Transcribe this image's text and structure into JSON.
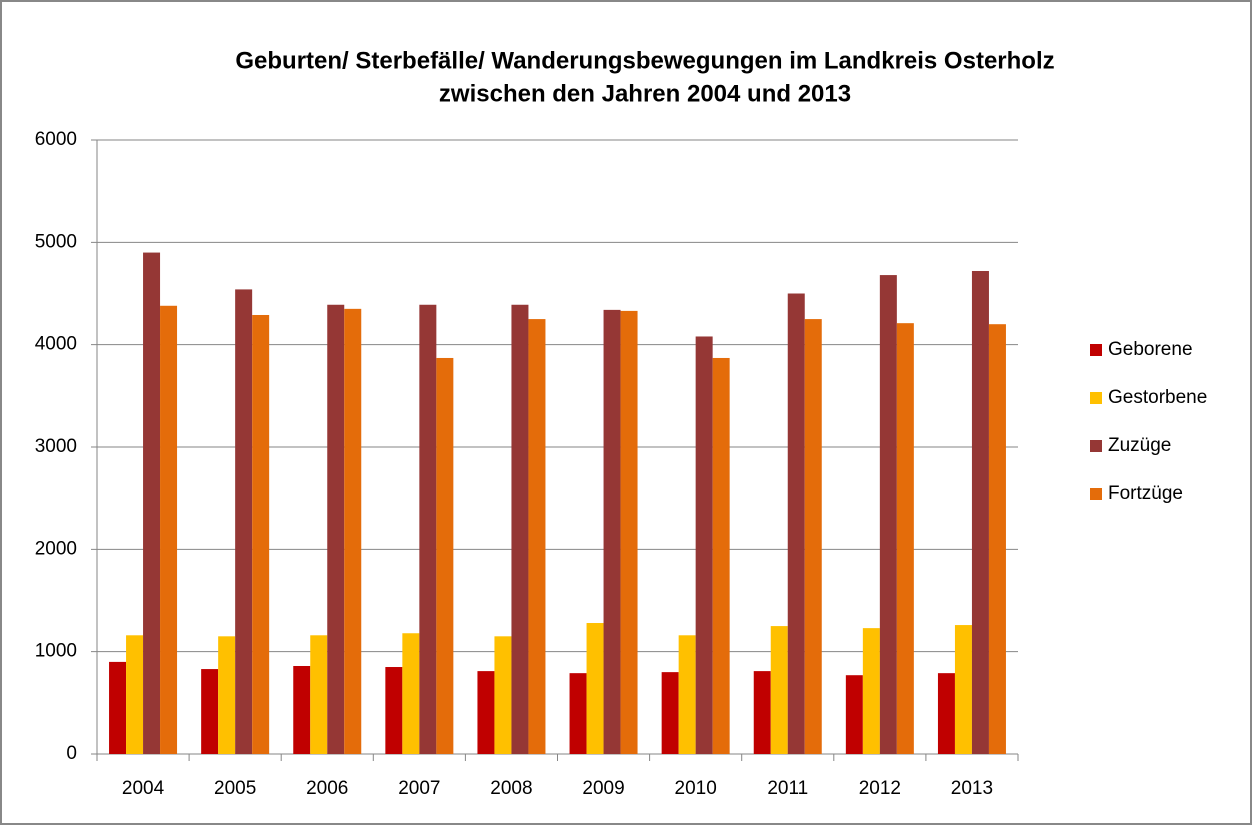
{
  "chart_data": {
    "type": "bar",
    "title": [
      "Geburten/ Sterbefälle/ Wanderungsbewegungen im Landkreis Osterholz",
      "zwischen den Jahren 2004 und 2013"
    ],
    "categories": [
      "2004",
      "2005",
      "2006",
      "2007",
      "2008",
      "2009",
      "2010",
      "2011",
      "2012",
      "2013"
    ],
    "series": [
      {
        "name": "Geborene",
        "color": "#c00000",
        "values": [
          900,
          830,
          860,
          850,
          810,
          790,
          800,
          810,
          770,
          790
        ]
      },
      {
        "name": "Gestorbene",
        "color": "#ffc000",
        "values": [
          1160,
          1150,
          1160,
          1180,
          1150,
          1280,
          1160,
          1250,
          1230,
          1260
        ]
      },
      {
        "name": "Zuzüge",
        "color": "#953735",
        "values": [
          4900,
          4540,
          4390,
          4390,
          4390,
          4340,
          4080,
          4500,
          4680,
          4720
        ]
      },
      {
        "name": "Fortzüge",
        "color": "#e46c0a",
        "values": [
          4380,
          4290,
          4350,
          3870,
          4250,
          4330,
          3870,
          4250,
          4210,
          4200
        ]
      }
    ],
    "ylim": [
      0,
      6000
    ],
    "yticks": [
      0,
      1000,
      2000,
      3000,
      4000,
      5000,
      6000
    ],
    "grid": true,
    "legend": "right"
  }
}
